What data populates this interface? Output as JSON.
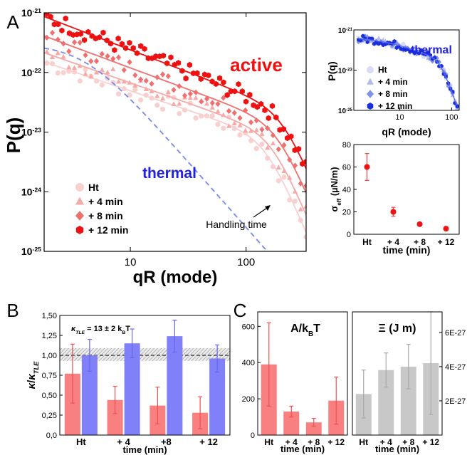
{
  "panels": {
    "A": "A",
    "B": "B",
    "C": "C"
  },
  "colors": {
    "ht": "#f8d0d0",
    "m4": "#f6aaa8",
    "m8": "#f07070",
    "m12": "#ee1111",
    "thermal_line": "#7788ee",
    "thermal_text": "#2222dd",
    "active_text": "#ee1111",
    "bar_red": "#f88080",
    "bar_blue": "#8080f8",
    "bar_gray": "#c8c8c8",
    "err_red": "#f05050",
    "err_blue": "#6666ee",
    "err_gray": "#aaaaaa"
  },
  "chart_data": [
    {
      "id": "A_main",
      "type": "scatter",
      "xlabel": "qR (mode)",
      "ylabel": "P(q)",
      "xscale": "log",
      "yscale": "log",
      "xlim": [
        1.8,
        330
      ],
      "ylim": [
        1e-25,
        1e-21
      ],
      "x_ticks": [
        {
          "v": 10,
          "label": "10"
        },
        {
          "v": 100,
          "label": "100"
        }
      ],
      "y_ticks": [
        {
          "v": 1e-21,
          "base": "10",
          "exp": "-21"
        },
        {
          "v": 1e-22,
          "base": "10",
          "exp": "-22"
        },
        {
          "v": 1e-23,
          "base": "10",
          "exp": "-23"
        },
        {
          "v": 1e-24,
          "base": "10",
          "exp": "-24"
        },
        {
          "v": 1e-25,
          "base": "10",
          "exp": "-25"
        }
      ],
      "legend_position": "bottom-left",
      "annotations": {
        "active": "active",
        "thermal": "thermal",
        "handling": "Handling time"
      },
      "series": [
        {
          "name": "Ht",
          "marker": "circle",
          "color_key": "ht",
          "amp": 1.4e-22,
          "slope": 0.65,
          "qc": 150
        },
        {
          "name": "+ 4 min",
          "marker": "triangle",
          "color_key": "m4",
          "amp": 2e-22,
          "slope": 0.68,
          "qc": 170
        },
        {
          "name": "+ 8 min",
          "marker": "diamond",
          "color_key": "m8",
          "amp": 3.8e-22,
          "slope": 0.72,
          "qc": 190
        },
        {
          "name": "+ 12 min",
          "marker": "hexagon",
          "color_key": "m12",
          "amp": 8e-22,
          "slope": 0.75,
          "qc": 210
        }
      ],
      "thermal_curve": {
        "amp": 3e-22,
        "q0": 4,
        "x_end": 160
      }
    },
    {
      "id": "A_inset_thermal",
      "type": "scatter",
      "xlabel": "qR (mode)",
      "ylabel": "P(q)",
      "xscale": "log",
      "yscale": "log",
      "xlim": [
        1.3,
        140
      ],
      "ylim": [
        1e-25,
        1e-21
      ],
      "x_ticks": [
        {
          "v": 10,
          "label": "10"
        },
        {
          "v": 100,
          "label": "100"
        }
      ],
      "y_ticks": [
        {
          "v": 1e-21,
          "base": "10",
          "exp": "-21"
        },
        {
          "v": 1e-23,
          "base": "10",
          "exp": "-23"
        },
        {
          "v": 1e-25,
          "base": "10",
          "exp": "-25"
        }
      ],
      "annotation": "thermal",
      "legend_position": "bottom-left",
      "series": [
        {
          "name": "Ht",
          "marker": "circle",
          "color": "#d8dcf6"
        },
        {
          "name": "+ 4 min",
          "marker": "triangle",
          "color": "#b4bcef"
        },
        {
          "name": "+ 8 min",
          "marker": "diamond",
          "color": "#8090e8"
        },
        {
          "name": "+ 12 min",
          "marker": "hexagon",
          "color": "#1a2fe0"
        }
      ],
      "fit": {
        "amp": 4.5e-22,
        "q0": 6,
        "x_start": 1.5,
        "x_end": 125
      }
    },
    {
      "id": "A_inset_sigma",
      "type": "scatter",
      "xlabel": "time (min)",
      "ylabel_main": "σ",
      "ylabel_sub": "eff",
      "ylabel_unit": " (µN/m)",
      "categories": [
        "Ht",
        "+ 4",
        "+ 8",
        "+ 12"
      ],
      "values": [
        60,
        20,
        9,
        5
      ],
      "errors": [
        12,
        4,
        1.5,
        1
      ],
      "ylim": [
        0,
        80
      ],
      "y_ticks": [
        0,
        20,
        40,
        60,
        80
      ]
    },
    {
      "id": "B",
      "type": "bar",
      "xlabel": "time (min)",
      "ylabel": "κ/κ_TLE",
      "annotation_prefix": "κ",
      "annotation_sub": "TLE",
      "annotation_rest": " = 13 ± 2  k",
      "annotation_sub2": "B",
      "annotation_tail": "T",
      "categories": [
        "Ht",
        "+ 4",
        "+8",
        "+ 12"
      ],
      "series": [
        {
          "name": "red",
          "values": [
            0.77,
            0.44,
            0.37,
            0.28
          ],
          "errors": [
            0.37,
            0.17,
            0.23,
            0.2
          ]
        },
        {
          "name": "blue",
          "values": [
            1.0,
            1.15,
            1.24,
            0.96
          ],
          "errors": [
            0.2,
            0.18,
            0.2,
            0.17
          ]
        }
      ],
      "reference": 1.0,
      "band": [
        0.93,
        1.09
      ],
      "ylim": [
        0,
        1.5
      ],
      "y_ticks": [
        "0,0",
        "0,25",
        "0,50",
        "0,75",
        "1,00",
        "1,25",
        "1,50"
      ]
    },
    {
      "id": "C_left",
      "type": "bar",
      "title_main": "A/k",
      "title_sub": "B",
      "title_tail": "T",
      "xlabel": "time (min)",
      "categories": [
        "Ht",
        "+ 4",
        "+ 8",
        "+ 12"
      ],
      "values": [
        390,
        130,
        70,
        190
      ],
      "errors": [
        230,
        30,
        22,
        130
      ],
      "ylim": [
        0,
        680
      ],
      "y_ticks": [
        0,
        200,
        400,
        600
      ]
    },
    {
      "id": "C_right",
      "type": "bar",
      "title": "Ξ (J m)",
      "xlabel": "time (min)",
      "categories": [
        "Ht",
        "+ 4",
        "+ 8",
        "+ 12"
      ],
      "values": [
        2.4e-27,
        3.8e-27,
        4e-27,
        4.2e-27
      ],
      "errors": [
        1.4e-27,
        1e-27,
        1.3e-27,
        3e-27
      ],
      "ylim": [
        0,
        7.2e-27
      ],
      "y_ticks": [
        {
          "v": 2e-27,
          "label": "2E-27"
        },
        {
          "v": 4e-27,
          "label": "4E-27"
        },
        {
          "v": 6e-27,
          "label": "6E-27"
        }
      ]
    }
  ]
}
